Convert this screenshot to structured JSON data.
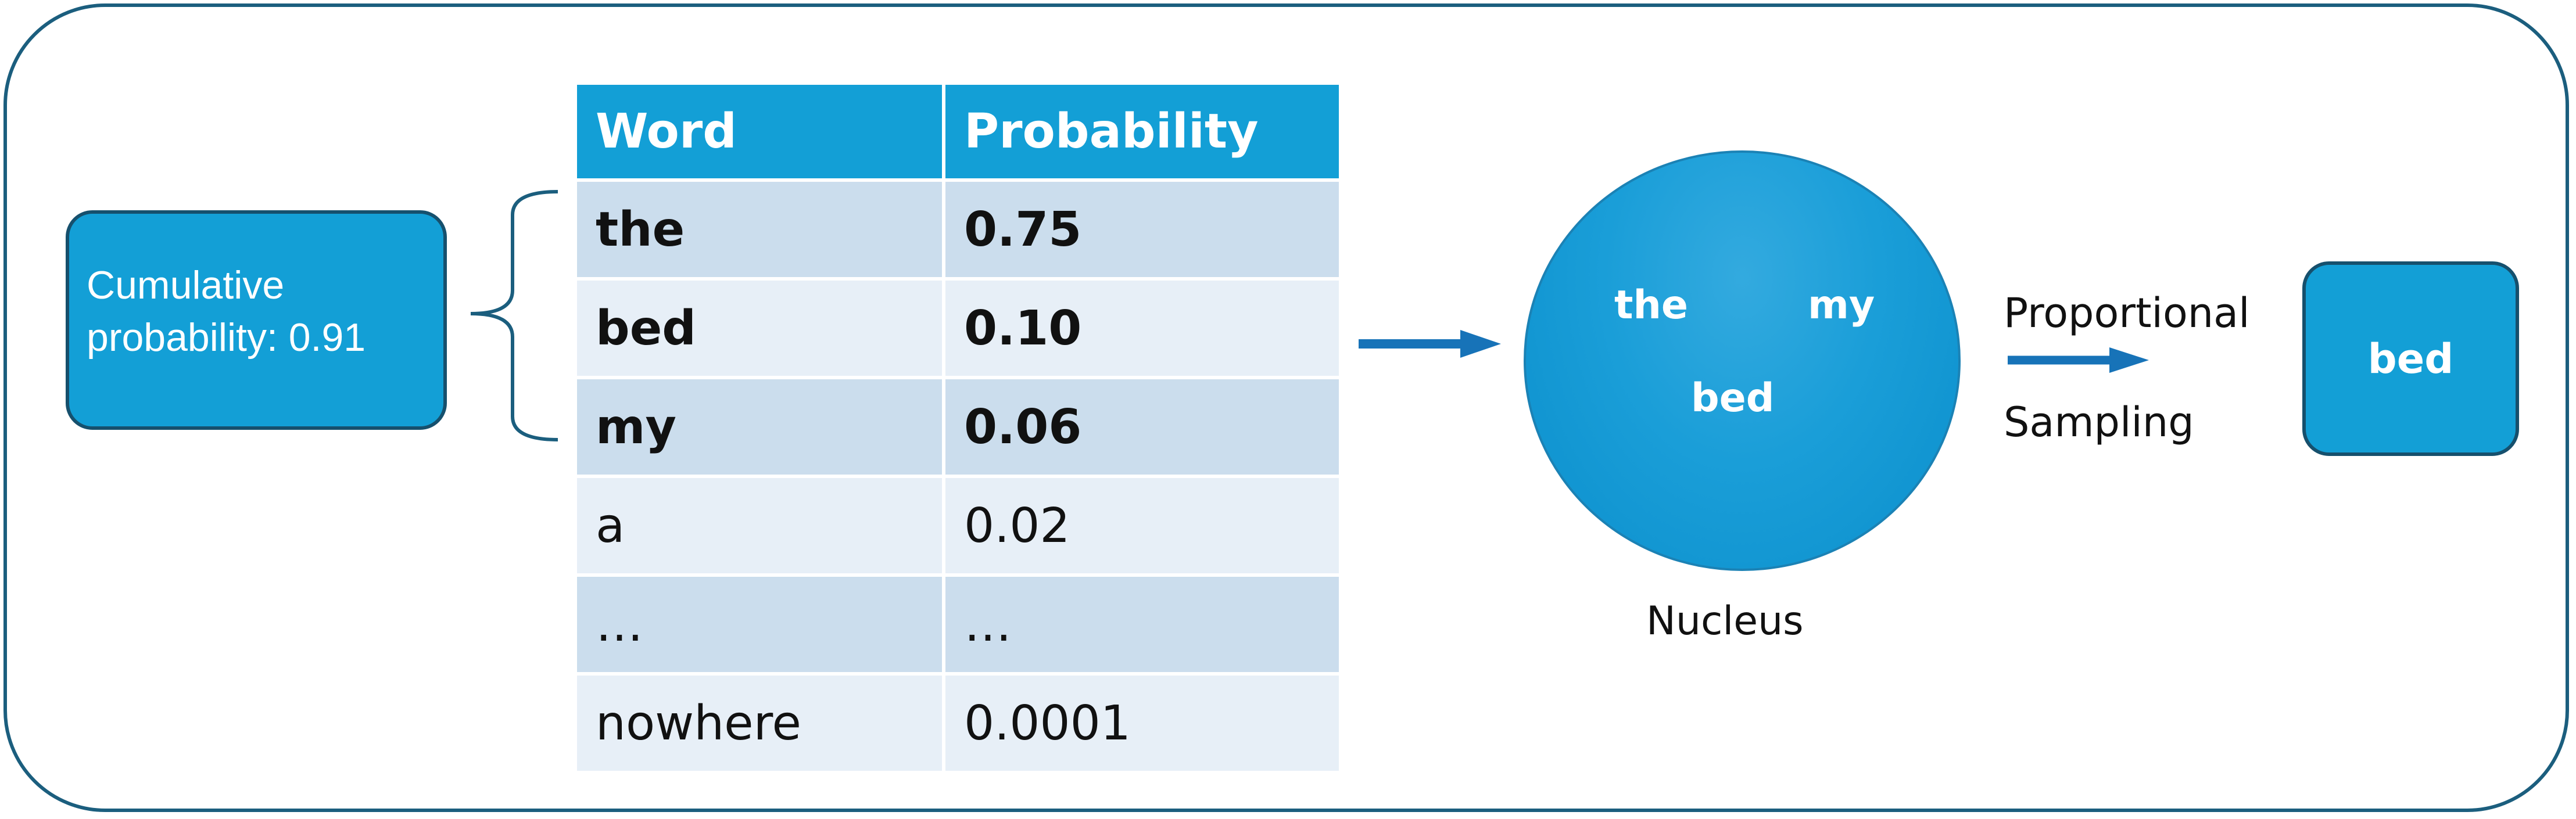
{
  "cumulative": {
    "line1": "Cumulative",
    "line2": "probability: 0.91"
  },
  "table": {
    "headers": [
      "Word",
      "Probability"
    ],
    "rows": [
      {
        "word": "the",
        "prob": "0.75"
      },
      {
        "word": "bed",
        "prob": "0.10"
      },
      {
        "word": "my",
        "prob": "0.06"
      },
      {
        "word": "a",
        "prob": "0.02"
      },
      {
        "word": "…",
        "prob": "…"
      },
      {
        "word": "nowhere",
        "prob": "0.0001"
      }
    ]
  },
  "nucleus": {
    "words": [
      "the",
      "my",
      "bed"
    ],
    "label": "Nucleus"
  },
  "sampling": {
    "top": "Proportional",
    "bottom": "Sampling"
  },
  "result": "bed",
  "colors": {
    "accent": "#139fd6",
    "border": "#16506d",
    "row_shaded": "#cbdded",
    "row_light": "#e7eff7",
    "arrow": "#1773b8"
  }
}
